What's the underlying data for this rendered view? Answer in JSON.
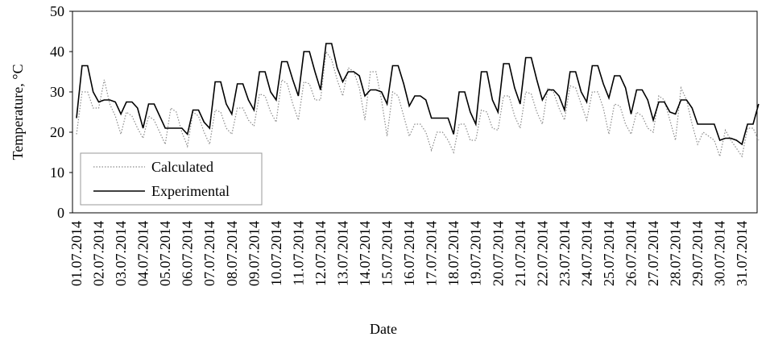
{
  "chart_data": {
    "type": "line",
    "ylabel": "Temperature, °C",
    "xlabel": "Date",
    "ylim": [
      0,
      50
    ],
    "yticks": [
      0,
      10,
      20,
      30,
      40,
      50
    ],
    "grid": false,
    "legend": "lower left",
    "categories": [
      "01.07.2014",
      null,
      null,
      null,
      "02.07.2014",
      null,
      null,
      null,
      "03.07.2014",
      null,
      null,
      null,
      "04.07.2014",
      null,
      null,
      null,
      "05.07.2014",
      null,
      null,
      null,
      "06.07.2014",
      null,
      null,
      null,
      "07.07.2014",
      null,
      null,
      null,
      "08.07.2014",
      null,
      null,
      null,
      "09.07.2014",
      null,
      null,
      null,
      "10.07.2014",
      null,
      null,
      null,
      "11.07.2014",
      null,
      null,
      null,
      "12.07.2014",
      null,
      null,
      null,
      "13.07.2014",
      null,
      null,
      null,
      "14.07.2014",
      null,
      null,
      null,
      "15.07.2014",
      null,
      null,
      null,
      "16.07.2014",
      null,
      null,
      null,
      "17.07.2014",
      null,
      null,
      null,
      "18.07.2014",
      null,
      null,
      null,
      "19.07.2014",
      null,
      null,
      null,
      "20.07.2014",
      null,
      null,
      null,
      "21.07.2014",
      null,
      null,
      null,
      "22.07.2014",
      null,
      null,
      null,
      "23.07.2014",
      null,
      null,
      null,
      "24.07.2014",
      null,
      null,
      null,
      "25.07.2014",
      null,
      null,
      null,
      "26.07.2014",
      null,
      null,
      null,
      "27.07.2014",
      null,
      null,
      null,
      "28.07.2014",
      null,
      null,
      null,
      "29.07.2014",
      null,
      null,
      null,
      "30.07.2014",
      null,
      null,
      null,
      "31.07.2014",
      null,
      null,
      null
    ],
    "series": [
      {
        "name": "Calculated",
        "color": "#8c8c8c",
        "dash": "dotted",
        "values": [
          19.5,
          30,
          30,
          26,
          26,
          33,
          27,
          24,
          19.5,
          25,
          24,
          21,
          18.5,
          24,
          23,
          20,
          17,
          26,
          25,
          20,
          16.5,
          25,
          24,
          20,
          17,
          25.5,
          25,
          21,
          19.5,
          26,
          26,
          23,
          21.5,
          29.5,
          29,
          25,
          22.5,
          33,
          32,
          27,
          23,
          32.5,
          32,
          28,
          28,
          40,
          38,
          33,
          29,
          36,
          35,
          31,
          23,
          35,
          35,
          28,
          19,
          30,
          29,
          24,
          19,
          22,
          22,
          20,
          15.5,
          20,
          20,
          18,
          15,
          22,
          22,
          18,
          18,
          25.5,
          25,
          21,
          20.5,
          29,
          29,
          24,
          21,
          30,
          29.5,
          25,
          22,
          31,
          30,
          26,
          23,
          31.5,
          31,
          27,
          23,
          30,
          30,
          26,
          19.5,
          27,
          26.5,
          22,
          19.5,
          25,
          24,
          21,
          20,
          29,
          28,
          23,
          18,
          31,
          28,
          22,
          17,
          20,
          19,
          18,
          14,
          20.5,
          18,
          16,
          14,
          21,
          21,
          18
        ]
      },
      {
        "name": "Experimental",
        "color": "#000000",
        "dash": "solid",
        "values": [
          23.5,
          36.5,
          36.5,
          30,
          27.5,
          28,
          28,
          27.5,
          24.5,
          27.5,
          27.5,
          26,
          21,
          27,
          27,
          24,
          21,
          21,
          21,
          21,
          19.5,
          25.5,
          25.5,
          22.5,
          21,
          32.5,
          32.5,
          27,
          24.5,
          32,
          32,
          28,
          25.5,
          35,
          35,
          30,
          28,
          37.5,
          37.5,
          33,
          29,
          40,
          40,
          35,
          30.5,
          42,
          42,
          36,
          32.5,
          35,
          35,
          34,
          29,
          30.5,
          30.5,
          30,
          27,
          36.5,
          36.5,
          32,
          26.5,
          29,
          29,
          28,
          23.5,
          23.5,
          23.5,
          23.5,
          19.5,
          30,
          30,
          25,
          22,
          35,
          35,
          28,
          25,
          37,
          37,
          31,
          27,
          38.5,
          38.5,
          33,
          28,
          30.5,
          30.5,
          29,
          25.5,
          35,
          35,
          30,
          27.5,
          36.5,
          36.5,
          32,
          28.5,
          34,
          34,
          31,
          24.5,
          30.5,
          30.5,
          28,
          23,
          27.5,
          27.5,
          25,
          24.5,
          28,
          28,
          26,
          22,
          22,
          22,
          22,
          18,
          18.5,
          18.5,
          18,
          17,
          22,
          22,
          27
        ]
      }
    ]
  }
}
